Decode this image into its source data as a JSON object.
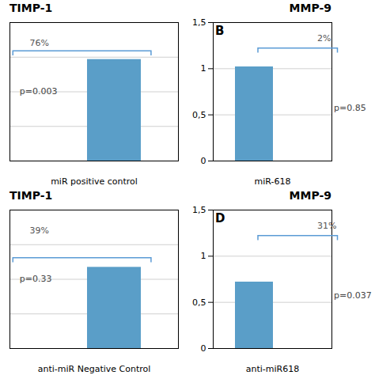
{
  "chart_data": [
    {
      "type": "bar",
      "title": "TIMP-1",
      "categories": [
        null
      ],
      "values": [
        1.1
      ],
      "color": "#5a9ec8",
      "x_label": "miR positive control",
      "ylim": [
        0,
        1.5
      ],
      "yticks": [
        0.375,
        0.75,
        1.125
      ],
      "grid": true,
      "tick_labels": false,
      "bracket_y": 1.19,
      "annotations": [
        {
          "text": "76%"
        },
        {
          "text": "p=0.003"
        }
      ]
    },
    {
      "type": "bar",
      "title": "MMP-9",
      "categories": [
        null
      ],
      "values": [
        1.02
      ],
      "color": "#5a9ec8",
      "x_label": "miR-618",
      "ylim": [
        0,
        1.5
      ],
      "yticks": [
        0,
        {
          "value": 0.5,
          "label": "0,5"
        },
        1,
        {
          "value": 1.5,
          "label": "1,5"
        }
      ],
      "grid": true,
      "tick_labels": "y",
      "bracket_y": 1.22,
      "annotations": [
        {
          "text": "2%"
        },
        {
          "text": "p=0.85"
        },
        {
          "text": "B"
        }
      ]
    },
    {
      "type": "bar",
      "title": "TIMP-1",
      "categories": [
        null
      ],
      "values": [
        0.88
      ],
      "color": "#5a9ec8",
      "x_label": "anti-miR Negative Control",
      "ylim": [
        0,
        1.5
      ],
      "yticks": [
        0.375,
        0.75,
        1.125
      ],
      "grid": true,
      "tick_labels": false,
      "bracket_y": 0.98,
      "annotations": [
        {
          "text": "39%"
        },
        {
          "text": "p=0.33"
        }
      ]
    },
    {
      "type": "bar",
      "title": "MMP-9",
      "categories": [
        null
      ],
      "values": [
        0.72
      ],
      "color": "#5a9ec8",
      "x_label": "anti-miR618",
      "ylim": [
        0,
        1.5
      ],
      "yticks": [
        0,
        {
          "value": 0.5,
          "label": "0,5"
        },
        1,
        {
          "value": 1.5,
          "label": "1,5"
        }
      ],
      "grid": true,
      "tick_labels": "y",
      "bracket_y": 1.22,
      "annotations": [
        {
          "text": "31%"
        },
        {
          "text": "p=0.037"
        },
        {
          "text": "D"
        }
      ]
    }
  ]
}
